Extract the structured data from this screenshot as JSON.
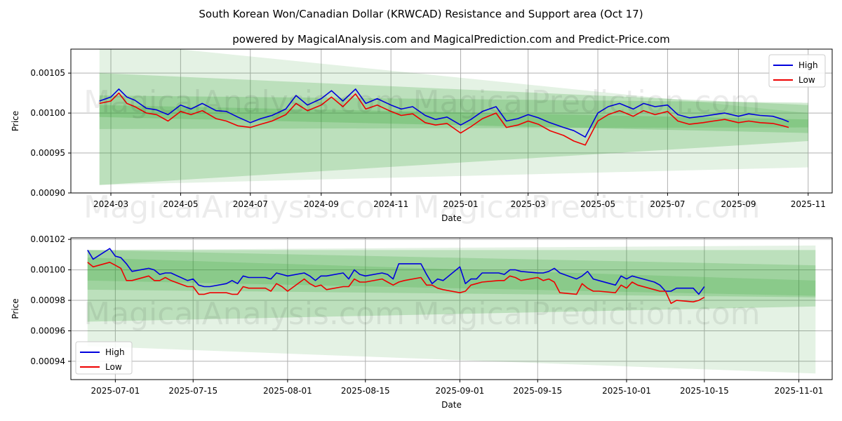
{
  "title": "South Korean Won/Canadian Dollar (KRWCAD) Resistance and Support area (Oct 17)",
  "subtitle": "powered by MagicalAnalysis.com and MagicalPrediction.com and Predict-Price.com",
  "watermarks": [
    "MagicalAnalysis.com",
    "MagicalPrediction.com"
  ],
  "colors": {
    "high": "#0000dd",
    "low": "#ee0000",
    "band": "#2e9e2e",
    "grid": "#b0b0b0"
  },
  "chart_data": [
    {
      "type": "line",
      "panel": "top",
      "xlabel": "Date",
      "ylabel": "Price",
      "xlim": [
        "2024-01-26",
        "2025-11-22"
      ],
      "ylim": [
        0.0009,
        0.00108
      ],
      "x_ticks": [
        "2024-03",
        "2024-05",
        "2024-07",
        "2024-09",
        "2024-11",
        "2025-01",
        "2025-03",
        "2025-05",
        "2025-07",
        "2025-09",
        "2025-11"
      ],
      "x_tick_dates": [
        "2024-03-01",
        "2024-05-01",
        "2024-07-01",
        "2024-09-01",
        "2024-11-01",
        "2025-01-01",
        "2025-03-01",
        "2025-05-01",
        "2025-07-01",
        "2025-09-01",
        "2025-11-01"
      ],
      "y_ticks": [
        "0.00090",
        "0.00095",
        "0.00100",
        "0.00105"
      ],
      "y_tick_values": [
        0.0009,
        0.00095,
        0.001,
        0.00105
      ],
      "legend": {
        "position": "top-right",
        "entries": [
          "High",
          "Low"
        ]
      },
      "bands": [
        {
          "x": [
            "2024-02-20",
            "2025-11-01"
          ],
          "top": [
            0.00109,
            0.001
          ],
          "bottom": [
            0.00091,
            0.000932
          ],
          "opacity": 0.13
        },
        {
          "x": [
            "2024-02-20",
            "2025-11-01"
          ],
          "top": [
            0.00105,
            0.00101
          ],
          "bottom": [
            0.00091,
            0.000965
          ],
          "opacity": 0.22
        },
        {
          "x": [
            "2024-02-20",
            "2025-11-01"
          ],
          "top": [
            0.001022,
            0.001013
          ],
          "bottom": [
            0.000995,
            0.000975
          ],
          "opacity": 0.22
        },
        {
          "x": [
            "2024-02-20",
            "2025-11-01"
          ],
          "top": [
            0.00101,
            0.000992
          ],
          "bottom": [
            0.00098,
            0.000982
          ],
          "opacity": 0.2
        }
      ],
      "series": [
        {
          "name": "High",
          "x": [
            "2024-02-20",
            "2024-03-01",
            "2024-03-08",
            "2024-03-15",
            "2024-03-22",
            "2024-04-01",
            "2024-04-10",
            "2024-04-20",
            "2024-05-01",
            "2024-05-10",
            "2024-05-20",
            "2024-06-01",
            "2024-06-10",
            "2024-06-20",
            "2024-07-01",
            "2024-07-10",
            "2024-07-20",
            "2024-08-01",
            "2024-08-10",
            "2024-08-20",
            "2024-09-01",
            "2024-09-10",
            "2024-09-20",
            "2024-10-01",
            "2024-10-10",
            "2024-10-20",
            "2024-11-01",
            "2024-11-10",
            "2024-11-20",
            "2024-12-01",
            "2024-12-10",
            "2024-12-20",
            "2025-01-01",
            "2025-01-10",
            "2025-01-20",
            "2025-02-01",
            "2025-02-10",
            "2025-02-20",
            "2025-03-01",
            "2025-03-10",
            "2025-03-20",
            "2025-04-01",
            "2025-04-10",
            "2025-04-20",
            "2025-05-01",
            "2025-05-10",
            "2025-05-20",
            "2025-06-01",
            "2025-06-10",
            "2025-06-20",
            "2025-07-01",
            "2025-07-10",
            "2025-07-20",
            "2025-08-01",
            "2025-08-10",
            "2025-08-20",
            "2025-09-01",
            "2025-09-10",
            "2025-09-20",
            "2025-10-01",
            "2025-10-10",
            "2025-10-15"
          ],
          "values": [
            0.001015,
            0.00102,
            0.00103,
            0.00102,
            0.001016,
            0.001006,
            0.001004,
            0.000998,
            0.00101,
            0.001005,
            0.001012,
            0.001003,
            0.001002,
            0.000995,
            0.000988,
            0.000993,
            0.000997,
            0.001005,
            0.001022,
            0.00101,
            0.001018,
            0.001028,
            0.001015,
            0.00103,
            0.001012,
            0.001018,
            0.00101,
            0.001005,
            0.001008,
            0.000997,
            0.000992,
            0.000995,
            0.000985,
            0.000992,
            0.001002,
            0.001008,
            0.00099,
            0.000993,
            0.000998,
            0.000994,
            0.000988,
            0.000982,
            0.000978,
            0.00097,
            0.001,
            0.001008,
            0.001012,
            0.001005,
            0.001012,
            0.001008,
            0.00101,
            0.000998,
            0.000994,
            0.000996,
            0.000998,
            0.001,
            0.000996,
            0.000999,
            0.000997,
            0.000996,
            0.000992,
            0.000989
          ]
        },
        {
          "name": "Low",
          "x": [
            "2024-02-20",
            "2024-03-01",
            "2024-03-08",
            "2024-03-15",
            "2024-03-22",
            "2024-04-01",
            "2024-04-10",
            "2024-04-20",
            "2024-05-01",
            "2024-05-10",
            "2024-05-20",
            "2024-06-01",
            "2024-06-10",
            "2024-06-20",
            "2024-07-01",
            "2024-07-10",
            "2024-07-20",
            "2024-08-01",
            "2024-08-10",
            "2024-08-20",
            "2024-09-01",
            "2024-09-10",
            "2024-09-20",
            "2024-10-01",
            "2024-10-10",
            "2024-10-20",
            "2024-11-01",
            "2024-11-10",
            "2024-11-20",
            "2024-12-01",
            "2024-12-10",
            "2024-12-20",
            "2025-01-01",
            "2025-01-10",
            "2025-01-20",
            "2025-02-01",
            "2025-02-10",
            "2025-02-20",
            "2025-03-01",
            "2025-03-10",
            "2025-03-20",
            "2025-04-01",
            "2025-04-10",
            "2025-04-20",
            "2025-05-01",
            "2025-05-10",
            "2025-05-20",
            "2025-06-01",
            "2025-06-10",
            "2025-06-20",
            "2025-07-01",
            "2025-07-10",
            "2025-07-20",
            "2025-08-01",
            "2025-08-10",
            "2025-08-20",
            "2025-09-01",
            "2025-09-10",
            "2025-09-20",
            "2025-10-01",
            "2025-10-10",
            "2025-10-15"
          ],
          "values": [
            0.001012,
            0.001015,
            0.001025,
            0.001012,
            0.001008,
            0.001,
            0.000998,
            0.00099,
            0.001002,
            0.000998,
            0.001003,
            0.000993,
            0.00099,
            0.000984,
            0.000982,
            0.000986,
            0.00099,
            0.000998,
            0.001012,
            0.001003,
            0.00101,
            0.00102,
            0.001008,
            0.001024,
            0.001005,
            0.00101,
            0.001002,
            0.000997,
            0.000999,
            0.000988,
            0.000985,
            0.000987,
            0.000975,
            0.000983,
            0.000993,
            0.001,
            0.000982,
            0.000985,
            0.00099,
            0.000986,
            0.000978,
            0.000972,
            0.000965,
            0.00096,
            0.00099,
            0.000998,
            0.001003,
            0.000996,
            0.001003,
            0.000998,
            0.001002,
            0.00099,
            0.000986,
            0.000988,
            0.00099,
            0.000992,
            0.000988,
            0.00099,
            0.000988,
            0.000987,
            0.000984,
            0.000982
          ]
        }
      ]
    },
    {
      "type": "line",
      "panel": "bottom",
      "xlabel": "Date",
      "ylabel": "Price",
      "xlim": [
        "2025-06-23",
        "2025-11-07"
      ],
      "ylim": [
        0.000928,
        0.001021
      ],
      "x_ticks": [
        "2025-07-01",
        "2025-07-15",
        "2025-08-01",
        "2025-08-15",
        "2025-09-01",
        "2025-09-15",
        "2025-10-01",
        "2025-10-15",
        "2025-11-01"
      ],
      "x_tick_dates": [
        "2025-07-01",
        "2025-07-15",
        "2025-08-01",
        "2025-08-15",
        "2025-09-01",
        "2025-09-15",
        "2025-10-01",
        "2025-10-15",
        "2025-11-01"
      ],
      "y_ticks": [
        "0.00094",
        "0.00096",
        "0.00098",
        "0.00100",
        "0.00102"
      ],
      "y_tick_values": [
        0.00094,
        0.00096,
        0.00098,
        0.001,
        0.00102
      ],
      "legend": {
        "position": "bottom-left",
        "entries": [
          "High",
          "Low"
        ]
      },
      "bands": [
        {
          "x": [
            "2025-06-26",
            "2025-11-04"
          ],
          "top": [
            0.001013,
            0.001016
          ],
          "bottom": [
            0.00095,
            0.000932
          ],
          "opacity": 0.13
        },
        {
          "x": [
            "2025-06-26",
            "2025-11-04"
          ],
          "top": [
            0.001013,
            0.001013
          ],
          "bottom": [
            0.000966,
            0.000976
          ],
          "opacity": 0.22
        },
        {
          "x": [
            "2025-06-26",
            "2025-11-04"
          ],
          "top": [
            0.001013,
            0.001003
          ],
          "bottom": [
            0.000987,
            0.000982
          ],
          "opacity": 0.2
        },
        {
          "x": [
            "2025-06-26",
            "2025-11-04"
          ],
          "top": [
            0.001008,
            0.000993
          ],
          "bottom": [
            0.000993,
            0.000983
          ],
          "opacity": 0.18
        }
      ],
      "series": [
        {
          "name": "High",
          "x": [
            "2025-06-26",
            "2025-06-27",
            "2025-06-30",
            "2025-07-01",
            "2025-07-02",
            "2025-07-03",
            "2025-07-04",
            "2025-07-07",
            "2025-07-08",
            "2025-07-09",
            "2025-07-10",
            "2025-07-11",
            "2025-07-14",
            "2025-07-15",
            "2025-07-16",
            "2025-07-17",
            "2025-07-18",
            "2025-07-21",
            "2025-07-22",
            "2025-07-23",
            "2025-07-24",
            "2025-07-25",
            "2025-07-28",
            "2025-07-29",
            "2025-07-30",
            "2025-07-31",
            "2025-08-01",
            "2025-08-04",
            "2025-08-05",
            "2025-08-06",
            "2025-08-07",
            "2025-08-08",
            "2025-08-11",
            "2025-08-12",
            "2025-08-13",
            "2025-08-14",
            "2025-08-15",
            "2025-08-18",
            "2025-08-19",
            "2025-08-20",
            "2025-08-21",
            "2025-08-22",
            "2025-08-25",
            "2025-08-26",
            "2025-08-27",
            "2025-08-28",
            "2025-08-29",
            "2025-09-01",
            "2025-09-02",
            "2025-09-03",
            "2025-09-04",
            "2025-09-05",
            "2025-09-08",
            "2025-09-09",
            "2025-09-10",
            "2025-09-11",
            "2025-09-12",
            "2025-09-15",
            "2025-09-16",
            "2025-09-17",
            "2025-09-18",
            "2025-09-19",
            "2025-09-22",
            "2025-09-23",
            "2025-09-24",
            "2025-09-25",
            "2025-09-26",
            "2025-09-29",
            "2025-09-30",
            "2025-10-01",
            "2025-10-02",
            "2025-10-03",
            "2025-10-06",
            "2025-10-07",
            "2025-10-08",
            "2025-10-09",
            "2025-10-10",
            "2025-10-13",
            "2025-10-14",
            "2025-10-15"
          ],
          "values": [
            0.001013,
            0.001007,
            0.001014,
            0.001009,
            0.001008,
            0.001004,
            0.000999,
            0.001001,
            0.001,
            0.000997,
            0.000998,
            0.000998,
            0.000993,
            0.000994,
            0.00099,
            0.000989,
            0.000989,
            0.000991,
            0.000993,
            0.000991,
            0.000996,
            0.000995,
            0.000995,
            0.000994,
            0.000998,
            0.000997,
            0.000996,
            0.000998,
            0.000996,
            0.000993,
            0.000996,
            0.000996,
            0.000998,
            0.000994,
            0.001,
            0.000997,
            0.000996,
            0.000998,
            0.000997,
            0.000994,
            0.001004,
            0.001004,
            0.001004,
            0.000997,
            0.000991,
            0.000994,
            0.000993,
            0.001002,
            0.000991,
            0.000994,
            0.000994,
            0.000998,
            0.000998,
            0.000997,
            0.001,
            0.001,
            0.000999,
            0.000998,
            0.000998,
            0.000999,
            0.001001,
            0.000998,
            0.000994,
            0.000996,
            0.000999,
            0.000994,
            0.000993,
            0.00099,
            0.000996,
            0.000994,
            0.000996,
            0.000995,
            0.000992,
            0.00099,
            0.000986,
            0.000986,
            0.000988,
            0.000988,
            0.000984,
            0.000989
          ]
        },
        {
          "name": "Low",
          "x": [
            "2025-06-26",
            "2025-06-27",
            "2025-06-30",
            "2025-07-01",
            "2025-07-02",
            "2025-07-03",
            "2025-07-04",
            "2025-07-07",
            "2025-07-08",
            "2025-07-09",
            "2025-07-10",
            "2025-07-11",
            "2025-07-14",
            "2025-07-15",
            "2025-07-16",
            "2025-07-17",
            "2025-07-18",
            "2025-07-21",
            "2025-07-22",
            "2025-07-23",
            "2025-07-24",
            "2025-07-25",
            "2025-07-28",
            "2025-07-29",
            "2025-07-30",
            "2025-07-31",
            "2025-08-01",
            "2025-08-04",
            "2025-08-05",
            "2025-08-06",
            "2025-08-07",
            "2025-08-08",
            "2025-08-11",
            "2025-08-12",
            "2025-08-13",
            "2025-08-14",
            "2025-08-15",
            "2025-08-18",
            "2025-08-19",
            "2025-08-20",
            "2025-08-21",
            "2025-08-22",
            "2025-08-25",
            "2025-08-26",
            "2025-08-27",
            "2025-08-28",
            "2025-08-29",
            "2025-09-01",
            "2025-09-02",
            "2025-09-03",
            "2025-09-04",
            "2025-09-05",
            "2025-09-08",
            "2025-09-09",
            "2025-09-10",
            "2025-09-11",
            "2025-09-12",
            "2025-09-15",
            "2025-09-16",
            "2025-09-17",
            "2025-09-18",
            "2025-09-19",
            "2025-09-22",
            "2025-09-23",
            "2025-09-24",
            "2025-09-25",
            "2025-09-26",
            "2025-09-29",
            "2025-09-30",
            "2025-10-01",
            "2025-10-02",
            "2025-10-03",
            "2025-10-06",
            "2025-10-07",
            "2025-10-08",
            "2025-10-09",
            "2025-10-10",
            "2025-10-13",
            "2025-10-14",
            "2025-10-15"
          ],
          "values": [
            0.001005,
            0.001002,
            0.001005,
            0.001003,
            0.001001,
            0.000993,
            0.000993,
            0.000996,
            0.000993,
            0.000993,
            0.000995,
            0.000993,
            0.000989,
            0.000989,
            0.000984,
            0.000984,
            0.000985,
            0.000985,
            0.000984,
            0.000984,
            0.000989,
            0.000988,
            0.000988,
            0.000986,
            0.000991,
            0.000989,
            0.000986,
            0.000994,
            0.000991,
            0.000989,
            0.00099,
            0.000987,
            0.000989,
            0.000989,
            0.000994,
            0.000992,
            0.000992,
            0.000994,
            0.000992,
            0.00099,
            0.000992,
            0.000993,
            0.000995,
            0.00099,
            0.00099,
            0.000988,
            0.000987,
            0.000985,
            0.000986,
            0.00099,
            0.000991,
            0.000992,
            0.000993,
            0.000993,
            0.000996,
            0.000995,
            0.000993,
            0.000995,
            0.000993,
            0.000994,
            0.000992,
            0.000985,
            0.000984,
            0.000991,
            0.000988,
            0.000986,
            0.000986,
            0.000985,
            0.00099,
            0.000988,
            0.000992,
            0.00099,
            0.000987,
            0.000986,
            0.000986,
            0.000978,
            0.00098,
            0.000979,
            0.00098,
            0.000982
          ]
        }
      ]
    }
  ]
}
